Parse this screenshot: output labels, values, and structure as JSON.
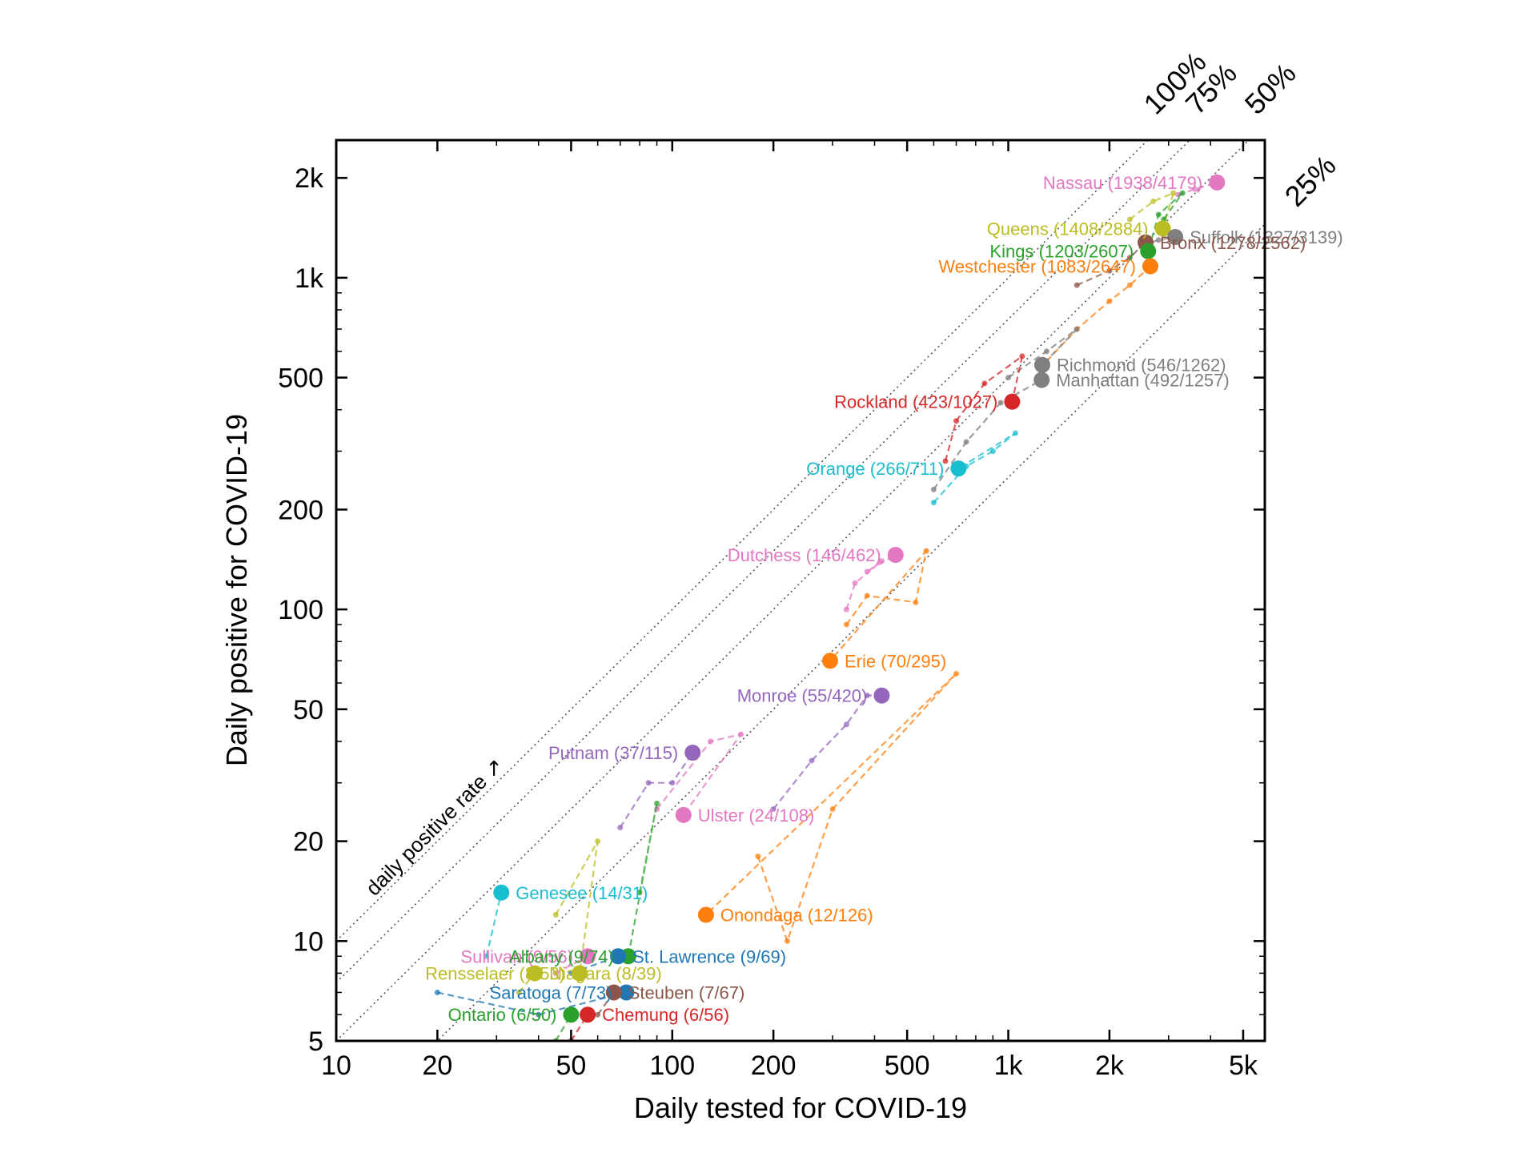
{
  "chart_data": {
    "type": "scatter",
    "xlabel": "Daily tested for COVID-19",
    "ylabel": "Daily positive for COVID-19",
    "xscale": "log",
    "yscale": "log",
    "xlim": [
      10,
      5800
    ],
    "ylim": [
      5,
      2600
    ],
    "x_ticks": [
      {
        "value": 10,
        "label": "10"
      },
      {
        "value": 20,
        "label": "20"
      },
      {
        "value": 50,
        "label": "50"
      },
      {
        "value": 100,
        "label": "100"
      },
      {
        "value": 200,
        "label": "200"
      },
      {
        "value": 500,
        "label": "500"
      },
      {
        "value": 1000,
        "label": "1k"
      },
      {
        "value": 2000,
        "label": "2k"
      },
      {
        "value": 5000,
        "label": "5k"
      }
    ],
    "y_ticks": [
      {
        "value": 5,
        "label": "5"
      },
      {
        "value": 10,
        "label": "10"
      },
      {
        "value": 20,
        "label": "20"
      },
      {
        "value": 50,
        "label": "50"
      },
      {
        "value": 100,
        "label": "100"
      },
      {
        "value": 200,
        "label": "200"
      },
      {
        "value": 500,
        "label": "500"
      },
      {
        "value": 1000,
        "label": "1k"
      },
      {
        "value": 2000,
        "label": "2k"
      }
    ],
    "reference_lines": [
      {
        "rate": 1.0,
        "label": "100%"
      },
      {
        "rate": 0.75,
        "label": "75%"
      },
      {
        "rate": 0.5,
        "label": "50%"
      },
      {
        "rate": 0.25,
        "label": "25%"
      }
    ],
    "annotation": "daily positive rate ↗",
    "grid": false,
    "series": [
      {
        "label": "Nassau (1938/4179)",
        "color": "#e377c2",
        "x": 4179,
        "y": 1938,
        "label_side": "left",
        "trail": [
          [
            3200,
            1780
          ],
          [
            3600,
            1850
          ],
          [
            4179,
            1938
          ]
        ]
      },
      {
        "label": "Queens (1408/2884)",
        "color": "#bcbd22",
        "x": 2884,
        "y": 1408,
        "label_side": "left",
        "trail": [
          [
            2300,
            1500
          ],
          [
            2700,
            1700
          ],
          [
            3100,
            1800
          ],
          [
            2884,
            1408
          ]
        ]
      },
      {
        "label": "Suffolk (1327/3139)",
        "color": "#7f7f7f",
        "x": 3139,
        "y": 1327,
        "label_side": "right",
        "trail": [
          [
            2500,
            1250
          ],
          [
            2800,
            1300
          ],
          [
            3139,
            1327
          ]
        ]
      },
      {
        "label": "Bronx (1278/2562)",
        "color": "#8c564b",
        "x": 2562,
        "y": 1278,
        "label_side": "right",
        "trail": [
          [
            1600,
            950
          ],
          [
            2000,
            1050
          ],
          [
            2300,
            1150
          ],
          [
            2562,
            1278
          ]
        ]
      },
      {
        "label": "Kings (1203/2607)",
        "color": "#2ca02c",
        "x": 2607,
        "y": 1203,
        "label_side": "left",
        "trail": [
          [
            2900,
            1500
          ],
          [
            3300,
            1800
          ],
          [
            2800,
            1550
          ],
          [
            2607,
            1203
          ]
        ]
      },
      {
        "label": "Westchester (1083/2647)",
        "color": "#ff7f0e",
        "x": 2647,
        "y": 1083,
        "label_side": "left",
        "trail": [
          [
            1300,
            560
          ],
          [
            1600,
            700
          ],
          [
            2000,
            850
          ],
          [
            2300,
            950
          ],
          [
            2647,
            1083
          ]
        ]
      },
      {
        "label": "Richmond (546/1262)",
        "color": "#7f7f7f",
        "x": 1262,
        "y": 546,
        "label_side": "right",
        "trail": [
          [
            1000,
            500
          ],
          [
            1300,
            600
          ],
          [
            1600,
            700
          ],
          [
            1262,
            546
          ]
        ]
      },
      {
        "label": "Manhattan (492/1257)",
        "color": "#7f7f7f",
        "x": 1257,
        "y": 492,
        "label_side": "right",
        "trail": [
          [
            600,
            230
          ],
          [
            750,
            320
          ],
          [
            950,
            420
          ],
          [
            1257,
            492
          ]
        ]
      },
      {
        "label": "Rockland (423/1027)",
        "color": "#d62728",
        "x": 1027,
        "y": 423,
        "label_side": "left",
        "trail": [
          [
            650,
            280
          ],
          [
            700,
            370
          ],
          [
            850,
            480
          ],
          [
            1100,
            580
          ],
          [
            1027,
            423
          ]
        ]
      },
      {
        "label": "Orange (266/711)",
        "color": "#17becf",
        "x": 711,
        "y": 266,
        "label_side": "left",
        "trail": [
          [
            600,
            210
          ],
          [
            750,
            270
          ],
          [
            900,
            300
          ],
          [
            1050,
            340
          ],
          [
            711,
            266
          ]
        ]
      },
      {
        "label": "Dutchess (146/462)",
        "color": "#e377c2",
        "x": 462,
        "y": 146,
        "label_side": "left",
        "trail": [
          [
            330,
            100
          ],
          [
            350,
            120
          ],
          [
            420,
            140
          ],
          [
            380,
            130
          ],
          [
            462,
            146
          ]
        ]
      },
      {
        "label": "Erie (70/295)",
        "color": "#ff7f0e",
        "x": 295,
        "y": 70,
        "label_side": "right",
        "trail": [
          [
            330,
            90
          ],
          [
            380,
            110
          ],
          [
            530,
            105
          ],
          [
            570,
            150
          ],
          [
            295,
            70
          ]
        ]
      },
      {
        "label": "Monroe (55/420)",
        "color": "#9467bd",
        "x": 420,
        "y": 55,
        "label_side": "left",
        "trail": [
          [
            200,
            25
          ],
          [
            260,
            35
          ],
          [
            330,
            45
          ],
          [
            380,
            55
          ],
          [
            420,
            55
          ]
        ]
      },
      {
        "label": "Putnam (37/115)",
        "color": "#9467bd",
        "x": 115,
        "y": 37,
        "label_side": "left",
        "trail": [
          [
            70,
            22
          ],
          [
            85,
            30
          ],
          [
            100,
            30
          ],
          [
            115,
            37
          ]
        ]
      },
      {
        "label": "Ulster (24/108)",
        "color": "#e377c2",
        "x": 108,
        "y": 24,
        "label_side": "right",
        "trail": [
          [
            90,
            25
          ],
          [
            130,
            40
          ],
          [
            160,
            42
          ],
          [
            108,
            24
          ]
        ]
      },
      {
        "label": "Genesee (14/31)",
        "color": "#17becf",
        "x": 31,
        "y": 14,
        "label_side": "right",
        "trail": [
          [
            28,
            9
          ],
          [
            31,
            14
          ]
        ]
      },
      {
        "label": "Onondaga (12/126)",
        "color": "#ff7f0e",
        "x": 126,
        "y": 12,
        "label_side": "right",
        "trail": [
          [
            180,
            18
          ],
          [
            220,
            10
          ],
          [
            300,
            25
          ],
          [
            700,
            64
          ],
          [
            126,
            12
          ]
        ]
      },
      {
        "label": "Sullivan (9/56)",
        "color": "#e377c2",
        "x": 56,
        "y": 9,
        "label_side": "left",
        "trail": [
          [
            45,
            8
          ],
          [
            56,
            9
          ]
        ]
      },
      {
        "label": "Albany (9/74)",
        "color": "#2ca02c",
        "x": 74,
        "y": 9,
        "label_side": "left",
        "trail": [
          [
            80,
            14
          ],
          [
            90,
            26
          ],
          [
            74,
            9
          ]
        ]
      },
      {
        "label": "St. Lawrence (9/69)",
        "color": "#1f77b4",
        "x": 69,
        "y": 9,
        "label_side": "right",
        "trail": [
          [
            50,
            8
          ],
          [
            69,
            9
          ]
        ]
      },
      {
        "label": "Rensselaer (8/53)",
        "color": "#bcbd22",
        "x": 53,
        "y": 8,
        "label_side": "left",
        "trail": [
          [
            45,
            12
          ],
          [
            60,
            20
          ],
          [
            53,
            8
          ]
        ]
      },
      {
        "label": "Niagara (8/39)",
        "color": "#bcbd22",
        "x": 39,
        "y": 8,
        "label_side": "right",
        "trail": [
          [
            35,
            7
          ],
          [
            39,
            8
          ]
        ]
      },
      {
        "label": "Saratoga (7/73)",
        "color": "#1f77b4",
        "x": 73,
        "y": 7,
        "label_side": "left",
        "trail": [
          [
            20,
            7
          ],
          [
            40,
            6
          ],
          [
            73,
            7
          ]
        ]
      },
      {
        "label": "Steuben (7/67)",
        "color": "#8c564b",
        "x": 67,
        "y": 7,
        "label_side": "right",
        "trail": [
          [
            60,
            6
          ],
          [
            67,
            7
          ]
        ]
      },
      {
        "label": "Ontario (6/50)",
        "color": "#2ca02c",
        "x": 50,
        "y": 6,
        "label_side": "left",
        "trail": [
          [
            45,
            5
          ],
          [
            50,
            6
          ]
        ]
      },
      {
        "label": "Chemung (6/56)",
        "color": "#d62728",
        "x": 56,
        "y": 6,
        "label_side": "right",
        "trail": [
          [
            50,
            5
          ],
          [
            56,
            6
          ]
        ]
      }
    ]
  }
}
